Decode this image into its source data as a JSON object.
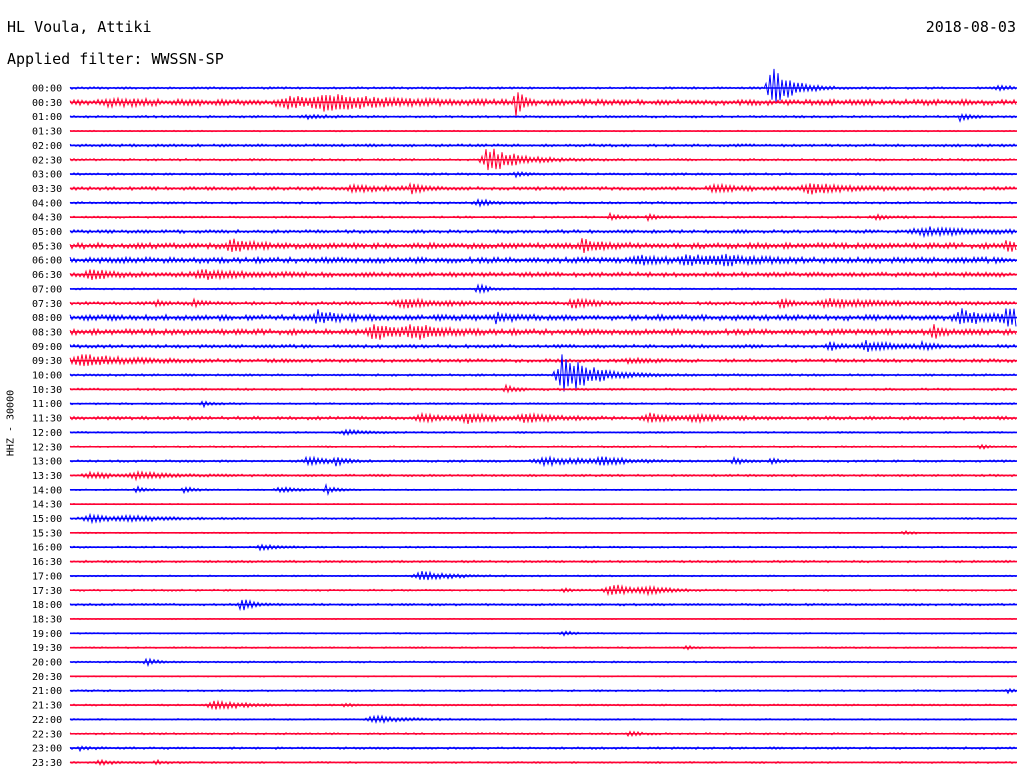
{
  "header": {
    "station": "HL Voula, Attiki",
    "date": "2018-08-03",
    "filter": "Applied filter: WWSSN-SP"
  },
  "channel_label": "HHZ - 30000",
  "colors": {
    "even": "#0000ff",
    "odd": "#ff0033",
    "text": "#000000"
  },
  "traces": [
    {
      "time": "00:00",
      "noise": 1.0,
      "events": [
        {
          "p": 0.74,
          "amp": 22,
          "dur": 0.02
        },
        {
          "p": 0.98,
          "amp": 2,
          "dur": 0.02
        }
      ]
    },
    {
      "time": "00:30",
      "noise": 2.5,
      "events": [
        {
          "p": 0.04,
          "amp": 3,
          "dur": 0.04
        },
        {
          "p": 0.23,
          "amp": 5,
          "dur": 0.06
        },
        {
          "p": 0.27,
          "amp": 6,
          "dur": 0.05
        },
        {
          "p": 0.47,
          "amp": 22,
          "dur": 0.005
        }
      ]
    },
    {
      "time": "01:00",
      "noise": 1.0,
      "events": [
        {
          "p": 0.25,
          "amp": 2,
          "dur": 0.02
        },
        {
          "p": 0.94,
          "amp": 4,
          "dur": 0.01
        }
      ]
    },
    {
      "time": "01:30",
      "noise": 0.6,
      "events": []
    },
    {
      "time": "02:00",
      "noise": 1.2,
      "events": []
    },
    {
      "time": "02:30",
      "noise": 1.0,
      "events": [
        {
          "p": 0.44,
          "amp": 14,
          "dur": 0.03
        }
      ]
    },
    {
      "time": "03:00",
      "noise": 1.0,
      "events": [
        {
          "p": 0.47,
          "amp": 3,
          "dur": 0.01
        }
      ]
    },
    {
      "time": "03:30",
      "noise": 1.5,
      "events": [
        {
          "p": 0.3,
          "amp": 3,
          "dur": 0.04
        },
        {
          "p": 0.36,
          "amp": 5,
          "dur": 0.01
        },
        {
          "p": 0.68,
          "amp": 4,
          "dur": 0.03
        },
        {
          "p": 0.78,
          "amp": 6,
          "dur": 0.04
        }
      ]
    },
    {
      "time": "04:00",
      "noise": 1.0,
      "events": [
        {
          "p": 0.43,
          "amp": 3,
          "dur": 0.02
        }
      ]
    },
    {
      "time": "04:30",
      "noise": 0.9,
      "events": [
        {
          "p": 0.57,
          "amp": 4,
          "dur": 0.01
        },
        {
          "p": 0.61,
          "amp": 3,
          "dur": 0.01
        },
        {
          "p": 0.85,
          "amp": 2,
          "dur": 0.02
        }
      ]
    },
    {
      "time": "05:00",
      "noise": 1.5,
      "events": [
        {
          "p": 0.9,
          "amp": 4,
          "dur": 0.06
        }
      ]
    },
    {
      "time": "05:30",
      "noise": 2.5,
      "events": [
        {
          "p": 0.17,
          "amp": 7,
          "dur": 0.02
        },
        {
          "p": 0.54,
          "amp": 6,
          "dur": 0.02
        },
        {
          "p": 0.99,
          "amp": 6,
          "dur": 0.02
        }
      ]
    },
    {
      "time": "06:00",
      "noise": 2.5,
      "events": [
        {
          "p": 0.6,
          "amp": 5,
          "dur": 0.02
        },
        {
          "p": 0.65,
          "amp": 5,
          "dur": 0.03
        },
        {
          "p": 0.69,
          "amp": 4,
          "dur": 0.03
        }
      ]
    },
    {
      "time": "06:30",
      "noise": 2.0,
      "events": [
        {
          "p": 0.02,
          "amp": 5,
          "dur": 0.02
        },
        {
          "p": 0.14,
          "amp": 4,
          "dur": 0.05
        }
      ]
    },
    {
      "time": "07:00",
      "noise": 0.8,
      "events": [
        {
          "p": 0.43,
          "amp": 6,
          "dur": 0.01
        }
      ]
    },
    {
      "time": "07:30",
      "noise": 1.5,
      "events": [
        {
          "p": 0.09,
          "amp": 3,
          "dur": 0.01
        },
        {
          "p": 0.13,
          "amp": 3,
          "dur": 0.01
        },
        {
          "p": 0.35,
          "amp": 4,
          "dur": 0.05
        },
        {
          "p": 0.53,
          "amp": 5,
          "dur": 0.02
        },
        {
          "p": 0.75,
          "amp": 6,
          "dur": 0.01
        },
        {
          "p": 0.8,
          "amp": 4,
          "dur": 0.06
        }
      ]
    },
    {
      "time": "08:00",
      "noise": 2.5,
      "events": [
        {
          "p": 0.26,
          "amp": 6,
          "dur": 0.02
        },
        {
          "p": 0.45,
          "amp": 6,
          "dur": 0.01
        },
        {
          "p": 0.94,
          "amp": 7,
          "dur": 0.03
        },
        {
          "p": 0.99,
          "amp": 8,
          "dur": 0.03
        }
      ]
    },
    {
      "time": "08:30",
      "noise": 2.5,
      "events": [
        {
          "p": 0.32,
          "amp": 7,
          "dur": 0.03
        },
        {
          "p": 0.36,
          "amp": 6,
          "dur": 0.03
        },
        {
          "p": 0.91,
          "amp": 8,
          "dur": 0.01
        }
      ]
    },
    {
      "time": "09:00",
      "noise": 1.5,
      "events": [
        {
          "p": 0.8,
          "amp": 5,
          "dur": 0.01
        },
        {
          "p": 0.84,
          "amp": 5,
          "dur": 0.03
        },
        {
          "p": 0.9,
          "amp": 4,
          "dur": 0.01
        }
      ]
    },
    {
      "time": "09:30",
      "noise": 1.5,
      "events": [
        {
          "p": 0.01,
          "amp": 6,
          "dur": 0.05
        },
        {
          "p": 0.59,
          "amp": 2,
          "dur": 0.02
        }
      ]
    },
    {
      "time": "10:00",
      "noise": 1.0,
      "events": [
        {
          "p": 0.52,
          "amp": 22,
          "dur": 0.03
        }
      ]
    },
    {
      "time": "10:30",
      "noise": 1.0,
      "events": [
        {
          "p": 0.46,
          "amp": 4,
          "dur": 0.01
        }
      ]
    },
    {
      "time": "11:00",
      "noise": 0.8,
      "events": [
        {
          "p": 0.14,
          "amp": 3,
          "dur": 0.01
        }
      ]
    },
    {
      "time": "11:30",
      "noise": 1.5,
      "events": [
        {
          "p": 0.37,
          "amp": 4,
          "dur": 0.03
        },
        {
          "p": 0.42,
          "amp": 4,
          "dur": 0.03
        },
        {
          "p": 0.48,
          "amp": 4,
          "dur": 0.03
        },
        {
          "p": 0.61,
          "amp": 4,
          "dur": 0.03
        },
        {
          "p": 0.66,
          "amp": 3,
          "dur": 0.03
        }
      ]
    },
    {
      "time": "12:00",
      "noise": 0.8,
      "events": [
        {
          "p": 0.29,
          "amp": 3,
          "dur": 0.02
        }
      ]
    },
    {
      "time": "12:30",
      "noise": 0.7,
      "events": [
        {
          "p": 0.96,
          "amp": 2,
          "dur": 0.01
        }
      ]
    },
    {
      "time": "13:00",
      "noise": 1.0,
      "events": [
        {
          "p": 0.25,
          "amp": 5,
          "dur": 0.02
        },
        {
          "p": 0.28,
          "amp": 4,
          "dur": 0.01
        },
        {
          "p": 0.5,
          "amp": 4,
          "dur": 0.05
        },
        {
          "p": 0.56,
          "amp": 4,
          "dur": 0.02
        },
        {
          "p": 0.7,
          "amp": 4,
          "dur": 0.01
        },
        {
          "p": 0.74,
          "amp": 3,
          "dur": 0.01
        }
      ]
    },
    {
      "time": "13:30",
      "noise": 1.0,
      "events": [
        {
          "p": 0.02,
          "amp": 3,
          "dur": 0.03
        },
        {
          "p": 0.07,
          "amp": 3,
          "dur": 0.04
        }
      ]
    },
    {
      "time": "14:00",
      "noise": 0.6,
      "events": [
        {
          "p": 0.07,
          "amp": 4,
          "dur": 0.01
        },
        {
          "p": 0.12,
          "amp": 4,
          "dur": 0.01
        },
        {
          "p": 0.22,
          "amp": 3,
          "dur": 0.02
        },
        {
          "p": 0.27,
          "amp": 5,
          "dur": 0.01
        }
      ]
    },
    {
      "time": "14:30",
      "noise": 0.5,
      "events": []
    },
    {
      "time": "15:00",
      "noise": 0.8,
      "events": [
        {
          "p": 0.02,
          "amp": 4,
          "dur": 0.04
        },
        {
          "p": 0.06,
          "amp": 2,
          "dur": 0.04
        }
      ]
    },
    {
      "time": "15:30",
      "noise": 0.6,
      "events": [
        {
          "p": 0.88,
          "amp": 2,
          "dur": 0.01
        }
      ]
    },
    {
      "time": "16:00",
      "noise": 0.8,
      "events": [
        {
          "p": 0.2,
          "amp": 3,
          "dur": 0.02
        }
      ]
    },
    {
      "time": "16:30",
      "noise": 1.0,
      "events": []
    },
    {
      "time": "17:00",
      "noise": 0.7,
      "events": [
        {
          "p": 0.37,
          "amp": 5,
          "dur": 0.03
        }
      ]
    },
    {
      "time": "17:30",
      "noise": 0.8,
      "events": [
        {
          "p": 0.52,
          "amp": 2,
          "dur": 0.01
        },
        {
          "p": 0.57,
          "amp": 6,
          "dur": 0.03
        },
        {
          "p": 0.61,
          "amp": 3,
          "dur": 0.02
        }
      ]
    },
    {
      "time": "18:00",
      "noise": 1.0,
      "events": [
        {
          "p": 0.18,
          "amp": 9,
          "dur": 0.01
        }
      ]
    },
    {
      "time": "18:30",
      "noise": 0.5,
      "events": []
    },
    {
      "time": "19:00",
      "noise": 0.6,
      "events": [
        {
          "p": 0.52,
          "amp": 3,
          "dur": 0.01
        }
      ]
    },
    {
      "time": "19:30",
      "noise": 0.7,
      "events": [
        {
          "p": 0.65,
          "amp": 2,
          "dur": 0.01
        }
      ]
    },
    {
      "time": "20:00",
      "noise": 0.8,
      "events": [
        {
          "p": 0.08,
          "amp": 4,
          "dur": 0.01
        }
      ]
    },
    {
      "time": "20:30",
      "noise": 0.5,
      "events": []
    },
    {
      "time": "21:00",
      "noise": 0.8,
      "events": [
        {
          "p": 0.99,
          "amp": 2,
          "dur": 0.01
        }
      ]
    },
    {
      "time": "21:30",
      "noise": 0.8,
      "events": [
        {
          "p": 0.15,
          "amp": 5,
          "dur": 0.03
        },
        {
          "p": 0.29,
          "amp": 2,
          "dur": 0.01
        }
      ]
    },
    {
      "time": "22:00",
      "noise": 0.7,
      "events": [
        {
          "p": 0.32,
          "amp": 4,
          "dur": 0.03
        }
      ]
    },
    {
      "time": "22:30",
      "noise": 0.8,
      "events": [
        {
          "p": 0.59,
          "amp": 3,
          "dur": 0.01
        }
      ]
    },
    {
      "time": "23:00",
      "noise": 1.0,
      "events": [
        {
          "p": 0.01,
          "amp": 2,
          "dur": 0.01
        }
      ]
    },
    {
      "time": "23:30",
      "noise": 0.8,
      "events": [
        {
          "p": 0.03,
          "amp": 2,
          "dur": 0.02
        },
        {
          "p": 0.09,
          "amp": 2,
          "dur": 0.01
        }
      ]
    }
  ]
}
